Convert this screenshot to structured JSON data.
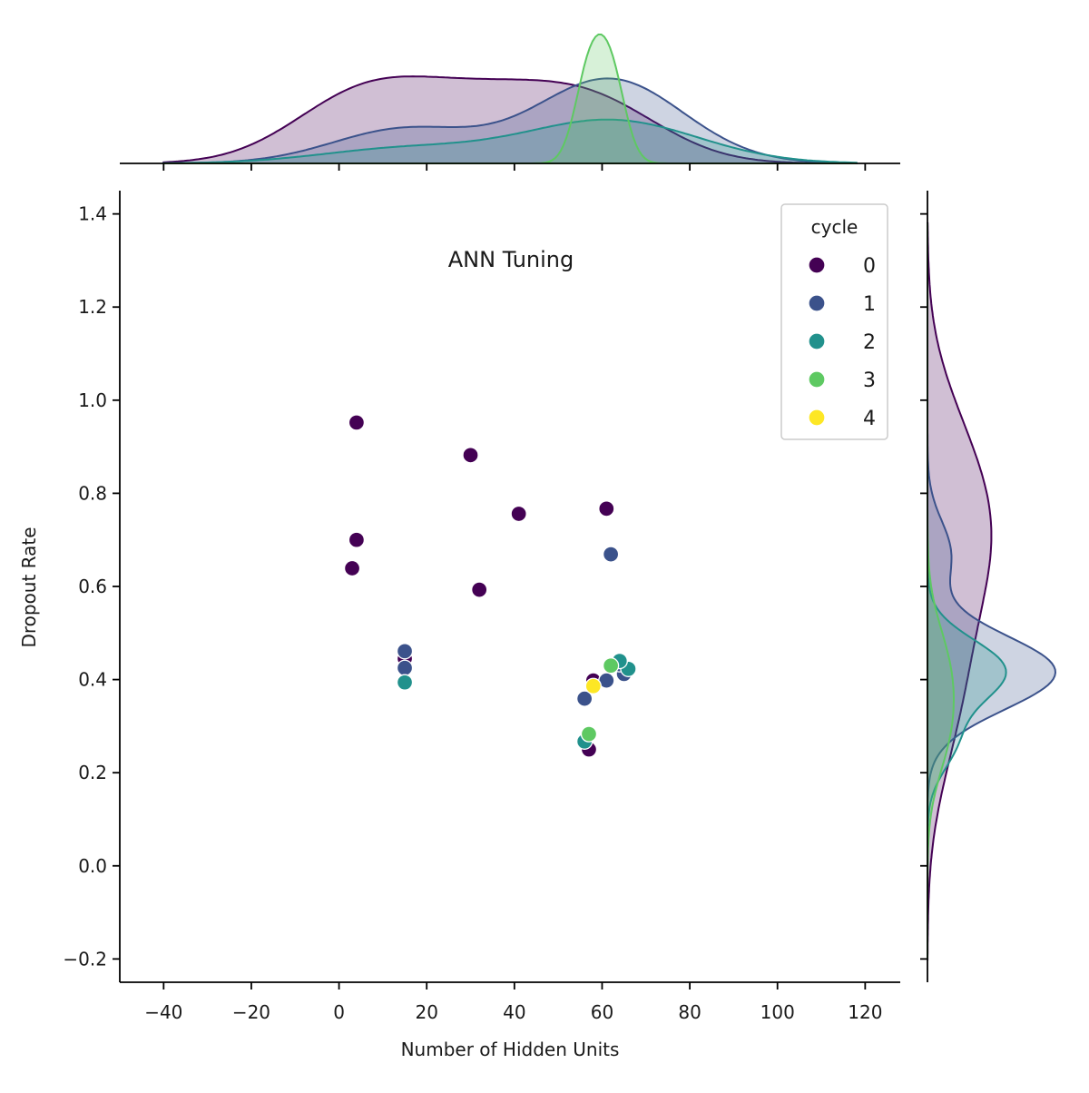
{
  "chart_data": {
    "type": "scatter",
    "title": "ANN Tuning",
    "xlabel": "Number of Hidden Units",
    "ylabel": "Dropout Rate",
    "xlim": [
      -50,
      128
    ],
    "ylim": [
      -0.25,
      1.45
    ],
    "xticks": [
      -40,
      -20,
      0,
      20,
      40,
      60,
      80,
      100,
      120
    ],
    "xtick_labels": [
      "−40",
      "−20",
      "0",
      "20",
      "40",
      "60",
      "80",
      "100",
      "120"
    ],
    "yticks": [
      -0.2,
      0.0,
      0.2,
      0.4,
      0.6,
      0.8,
      1.0,
      1.2,
      1.4
    ],
    "ytick_labels": [
      "−0.2",
      "0.0",
      "0.2",
      "0.4",
      "0.6",
      "0.8",
      "1.0",
      "1.2",
      "1.4"
    ],
    "grid": false,
    "legend": {
      "title": "cycle",
      "position": "top-right"
    },
    "marginal_x": "kde",
    "marginal_y": "kde",
    "series": [
      {
        "name": "0",
        "color": "#440154",
        "points": [
          [
            4,
            0.952
          ],
          [
            30,
            0.882
          ],
          [
            41,
            0.756
          ],
          [
            61,
            0.767
          ],
          [
            4,
            0.7
          ],
          [
            3,
            0.639
          ],
          [
            32,
            0.593
          ],
          [
            15,
            0.445
          ],
          [
            58,
            0.398
          ],
          [
            57,
            0.25
          ]
        ]
      },
      {
        "name": "1",
        "color": "#3b528b",
        "points": [
          [
            62,
            0.669
          ],
          [
            15,
            0.461
          ],
          [
            15,
            0.425
          ],
          [
            61,
            0.398
          ],
          [
            56,
            0.359
          ],
          [
            65,
            0.412
          ],
          [
            64,
            0.433
          ]
        ]
      },
      {
        "name": "2",
        "color": "#21918c",
        "points": [
          [
            15,
            0.394
          ],
          [
            66,
            0.423
          ],
          [
            64,
            0.44
          ],
          [
            56,
            0.267
          ]
        ]
      },
      {
        "name": "3",
        "color": "#5ec962",
        "points": [
          [
            62,
            0.43
          ],
          [
            57,
            0.283
          ]
        ]
      },
      {
        "name": "4",
        "color": "#fde725",
        "points": [
          [
            58,
            0.386
          ]
        ]
      }
    ]
  }
}
